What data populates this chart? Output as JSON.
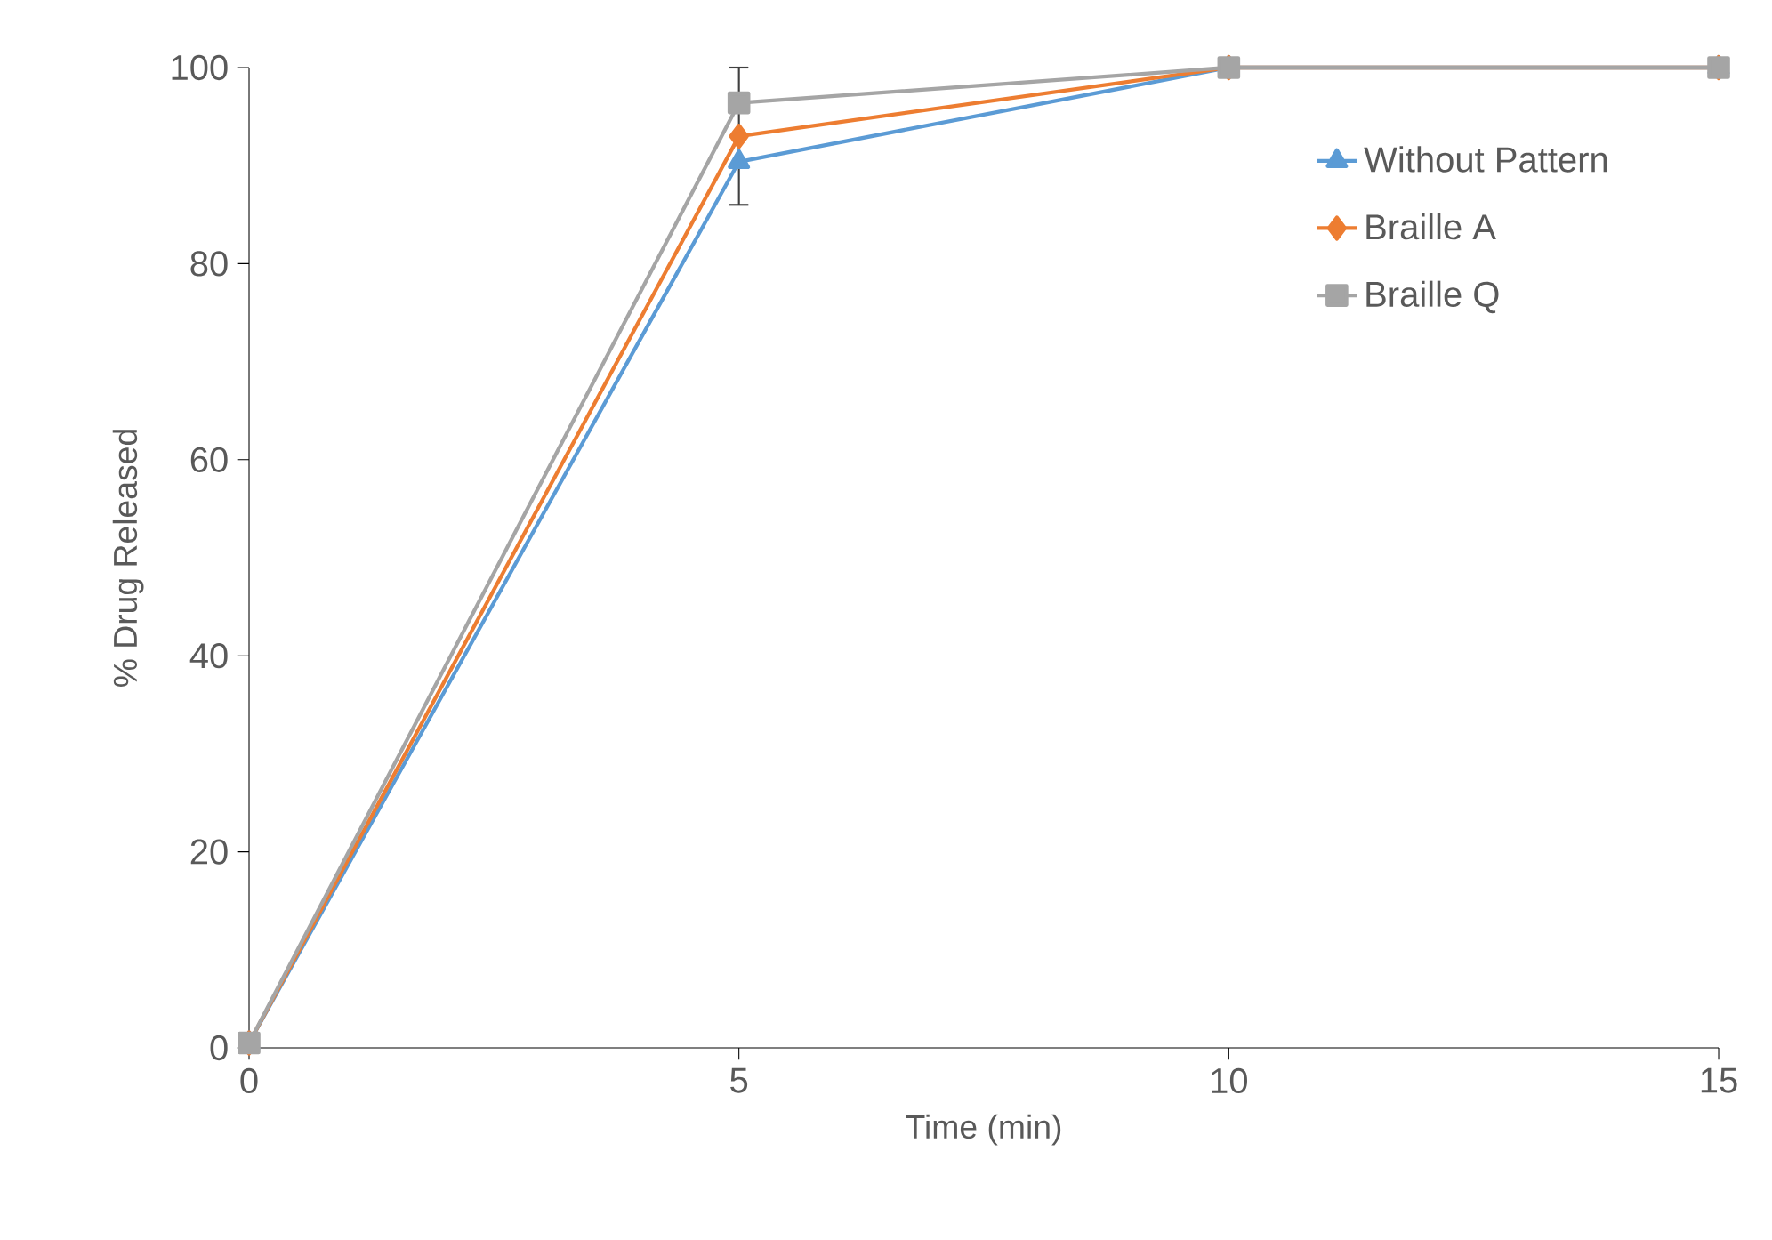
{
  "chart_data": {
    "type": "line",
    "xlabel": "Time (min)",
    "ylabel": "% Drug Released",
    "x": [
      0,
      5,
      10,
      15
    ],
    "series": [
      {
        "name": "Without Pattern",
        "color": "#5b9bd5",
        "marker": "triangle",
        "values": [
          0.5,
          90.4,
          100,
          100
        ]
      },
      {
        "name": "Braille A",
        "color": "#ed7d31",
        "marker": "diamond",
        "values": [
          0.5,
          93,
          100,
          100
        ],
        "errors": [
          null,
          7,
          null,
          null
        ]
      },
      {
        "name": "Braille Q",
        "color": "#a5a5a5",
        "marker": "square",
        "values": [
          0.5,
          96.4,
          100,
          100
        ]
      }
    ],
    "xlim": [
      0,
      15
    ],
    "xticks": [
      0,
      5,
      10,
      15
    ],
    "ylim": [
      0,
      100
    ],
    "yticks": [
      0,
      20,
      40,
      60,
      80,
      100
    ],
    "grid": false,
    "legend": "top right",
    "line_style": "solid"
  }
}
